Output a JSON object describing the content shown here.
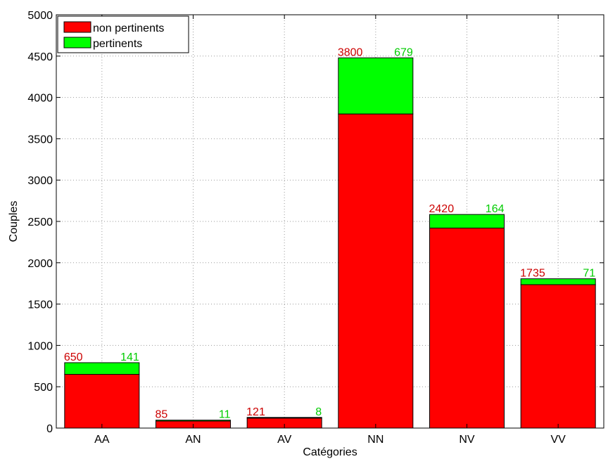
{
  "chart_data": {
    "type": "bar",
    "stacked": true,
    "categories": [
      "AA",
      "AN",
      "AV",
      "NN",
      "NV",
      "VV"
    ],
    "series": [
      {
        "name": "non pertinents",
        "values": [
          650,
          85,
          121,
          3800,
          2420,
          1735
        ],
        "color": "#ff0000",
        "label_color": "#cc0000"
      },
      {
        "name": "pertinents",
        "values": [
          141,
          11,
          8,
          679,
          164,
          71
        ],
        "color": "#00ff00",
        "label_color": "#00cc00"
      }
    ],
    "xlabel": "Catégories",
    "ylabel": "Couples",
    "ylim": [
      0,
      5000
    ],
    "yticks": [
      0,
      500,
      1000,
      1500,
      2000,
      2500,
      3000,
      3500,
      4000,
      4500,
      5000
    ],
    "grid": true,
    "legend_position": "top-left"
  }
}
